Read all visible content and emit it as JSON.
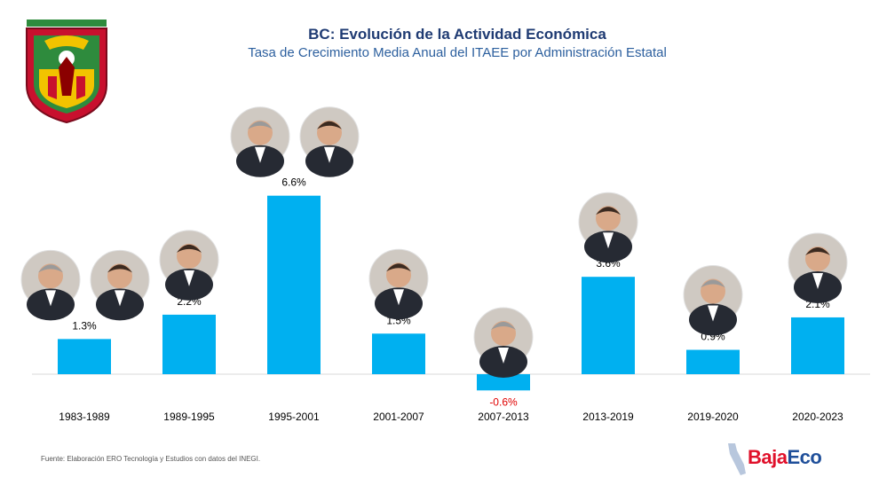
{
  "header": {
    "title": "BC: Evolución de la Actividad Económica",
    "subtitle": "Tasa de Crecimiento Media Anual del ITAEE por Administración Estatal"
  },
  "footer": {
    "source": "Fuente: Elaboración ERO Tecnología y Estudios con datos del INEGI.",
    "brand_part1": "Baja",
    "brand_part2": "Eco"
  },
  "colors": {
    "bar": "#00b0f0",
    "negative_label": "#e00000",
    "title": "#1f3b73",
    "subtitle": "#2c5f9e"
  },
  "chart_data": {
    "type": "bar",
    "title": "BC: Evolución de la Actividad Económica",
    "subtitle": "Tasa de Crecimiento Media Anual del ITAEE por Administración Estatal",
    "categories": [
      "1983-1989",
      "1989-1995",
      "1995-2001",
      "2001-2007",
      "2007-2013",
      "2013-2019",
      "2019-2020",
      "2020-2023"
    ],
    "values": [
      1.3,
      2.2,
      6.6,
      1.5,
      -0.6,
      3.6,
      0.9,
      2.1
    ],
    "data_labels": [
      "1.3%",
      "2.2%",
      "6.6%",
      "1.5%",
      "-0.6%",
      "3.6%",
      "0.9%",
      "2.1%"
    ],
    "portraits_per_bar": [
      2,
      1,
      2,
      1,
      1,
      1,
      1,
      1
    ],
    "ylim": [
      -0.6,
      6.6
    ],
    "grid": false,
    "legend": "none"
  }
}
